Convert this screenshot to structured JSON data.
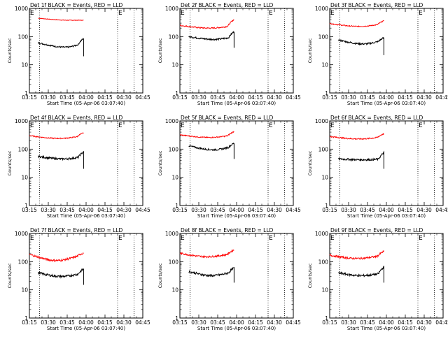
{
  "figure": {
    "xlabel": "Start Time (05-Apr-06 03:07:40)",
    "ylabel": "Counts/sec"
  },
  "chart_data": [
    {
      "type": "line",
      "title": "Det 1f BLACK = Events, RED = LLD",
      "series": [
        {
          "color": "#ff0000",
          "start": "03:22",
          "end": "03:58",
          "base": 450,
          "min": 380,
          "dip": 0.7,
          "noise": 0.02,
          "step": 0.6
        },
        {
          "color": "#000000",
          "start": "03:22",
          "end": "03:58",
          "base": 60,
          "min": 42,
          "dip": 0.6,
          "noise": 0.06,
          "end_spike": 85,
          "end_drop": 20
        }
      ]
    },
    {
      "type": "line",
      "title": "Det 2f BLACK = Events, RED = LLD",
      "series": [
        {
          "color": "#ff0000",
          "start": "03:15",
          "end": "03:58",
          "base": 250,
          "min": 200,
          "dip": 0.55,
          "noise": 0.05,
          "end_spike": 400
        },
        {
          "color": "#000000",
          "start": "03:22",
          "end": "03:58",
          "base": 100,
          "min": 80,
          "dip": 0.55,
          "noise": 0.07,
          "end_spike": 150,
          "end_drop": 40
        }
      ]
    },
    {
      "type": "line",
      "title": "Det 3f BLACK = Events, RED = LLD",
      "series": [
        {
          "color": "#ff0000",
          "start": "03:15",
          "end": "03:58",
          "base": 290,
          "min": 230,
          "dip": 0.55,
          "noise": 0.04,
          "end_spike": 360
        },
        {
          "color": "#000000",
          "start": "03:22",
          "end": "03:58",
          "base": 75,
          "min": 55,
          "dip": 0.55,
          "noise": 0.07,
          "end_spike": 90,
          "end_drop": 22
        }
      ]
    },
    {
      "type": "line",
      "title": "Det 4f BLACK = Events, RED = LLD",
      "series": [
        {
          "color": "#ff0000",
          "start": "03:15",
          "end": "03:58",
          "base": 300,
          "min": 240,
          "dip": 0.55,
          "noise": 0.04,
          "end_spike": 380
        },
        {
          "color": "#000000",
          "start": "03:22",
          "end": "03:58",
          "base": 55,
          "min": 45,
          "dip": 0.55,
          "noise": 0.08,
          "end_spike": 80,
          "end_drop": 20
        }
      ]
    },
    {
      "type": "line",
      "title": "Det 5f BLACK = Events, RED = LLD",
      "series": [
        {
          "color": "#ff0000",
          "start": "03:15",
          "end": "03:58",
          "base": 320,
          "min": 260,
          "dip": 0.55,
          "noise": 0.04,
          "end_spike": 420
        },
        {
          "color": "#000000",
          "start": "03:22",
          "end": "03:58",
          "base": 130,
          "min": 95,
          "dip": 0.55,
          "noise": 0.07,
          "end_spike": 160,
          "end_drop": 45
        }
      ]
    },
    {
      "type": "line",
      "title": "Det 6f BLACK = Events, RED = LLD",
      "series": [
        {
          "color": "#ff0000",
          "start": "03:15",
          "end": "03:58",
          "base": 280,
          "min": 230,
          "dip": 0.55,
          "noise": 0.05,
          "end_spike": 350
        },
        {
          "color": "#000000",
          "start": "03:22",
          "end": "03:58",
          "base": 45,
          "min": 42,
          "dip": 0.55,
          "noise": 0.08,
          "end_spike": 75,
          "end_drop": 20
        }
      ]
    },
    {
      "type": "line",
      "title": "Det 7f BLACK = Events, RED = LLD",
      "series": [
        {
          "color": "#ff0000",
          "start": "03:15",
          "end": "03:58",
          "base": 180,
          "min": 110,
          "dip": 0.5,
          "noise": 0.08,
          "end_spike": 200
        },
        {
          "color": "#000000",
          "start": "03:22",
          "end": "03:58",
          "base": 40,
          "min": 30,
          "dip": 0.5,
          "noise": 0.09,
          "end_spike": 55,
          "end_drop": 15
        }
      ]
    },
    {
      "type": "line",
      "title": "Det 8f BLACK = Events, RED = LLD",
      "series": [
        {
          "color": "#ff0000",
          "start": "03:15",
          "end": "03:58",
          "base": 200,
          "min": 150,
          "dip": 0.5,
          "noise": 0.07,
          "end_spike": 260
        },
        {
          "color": "#000000",
          "start": "03:22",
          "end": "03:58",
          "base": 45,
          "min": 32,
          "dip": 0.5,
          "noise": 0.09,
          "end_spike": 60,
          "end_drop": 18
        }
      ]
    },
    {
      "type": "line",
      "title": "Det 9f BLACK = Events, RED = LLD",
      "series": [
        {
          "color": "#ff0000",
          "start": "03:15",
          "end": "03:58",
          "base": 170,
          "min": 130,
          "dip": 0.5,
          "noise": 0.08,
          "end_spike": 230
        },
        {
          "color": "#000000",
          "start": "03:22",
          "end": "03:58",
          "base": 40,
          "min": 32,
          "dip": 0.5,
          "noise": 0.09,
          "end_spike": 65,
          "end_drop": 18
        }
      ]
    }
  ],
  "shared_axes": {
    "xlim": [
      "03:15",
      "04:45"
    ],
    "xticks": [
      "03:15",
      "03:30",
      "03:45",
      "04:00",
      "04:15",
      "04:30",
      "04:45"
    ],
    "ylim": [
      1,
      1000
    ],
    "yscale": "log",
    "yticks": [
      1,
      10,
      100,
      1000
    ],
    "dotted_vlines": [
      "03:23",
      "04:25",
      "04:38"
    ],
    "markers": [
      {
        "text": "E",
        "at": "03:15"
      },
      {
        "text": "E",
        "at": "04:25"
      }
    ]
  }
}
